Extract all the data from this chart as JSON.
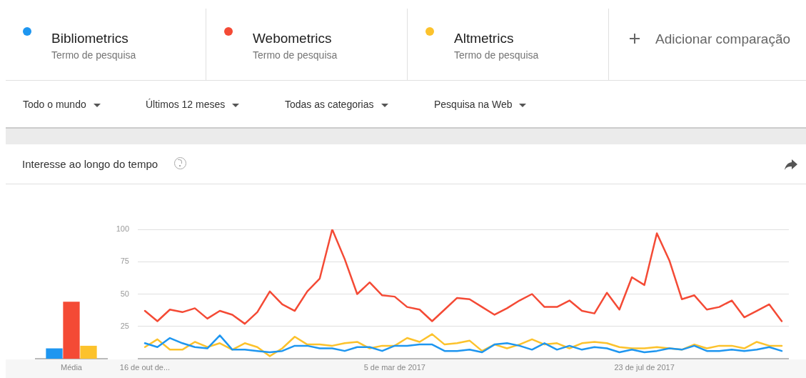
{
  "chart_data": [
    {
      "type": "line",
      "legend": "top",
      "grid": "y",
      "marker": "none",
      "line_style": "solid",
      "annotations": [
        "Termo de pesquisa",
        "Termo de pesquisa",
        "Termo de pesquisa",
        "Adicionar comparação",
        "Todo o mundo",
        "Últimos 12 meses",
        "Todas as categorias",
        "Pesquisa na Web"
      ],
      "x": [
        "2016-10-16",
        "2016-10-23",
        "2016-10-30",
        "2016-11-06",
        "2016-11-13",
        "2016-11-20",
        "2016-11-27",
        "2016-12-04",
        "2016-12-11",
        "2016-12-18",
        "2016-12-25",
        "2017-01-01",
        "2017-01-08",
        "2017-01-15",
        "2017-01-22",
        "2017-01-29",
        "2017-02-05",
        "2017-02-12",
        "2017-02-19",
        "2017-02-26",
        "2017-03-05",
        "2017-03-12",
        "2017-03-19",
        "2017-03-26",
        "2017-04-02",
        "2017-04-09",
        "2017-04-16",
        "2017-04-23",
        "2017-04-30",
        "2017-05-07",
        "2017-05-14",
        "2017-05-21",
        "2017-05-28",
        "2017-06-04",
        "2017-06-11",
        "2017-06-18",
        "2017-06-25",
        "2017-07-02",
        "2017-07-09",
        "2017-07-16",
        "2017-07-23",
        "2017-07-30",
        "2017-08-06",
        "2017-08-13",
        "2017-08-20",
        "2017-08-27",
        "2017-09-03",
        "2017-09-10",
        "2017-09-17",
        "2017-09-24",
        "2017-10-01",
        "2017-10-08"
      ],
      "xlim": [
        "2016-10-12",
        "2017-10-12"
      ],
      "xticks": [
        {
          "value": "2016-10-16",
          "label": "16 de out de..."
        },
        {
          "value": "2017-03-05",
          "label": "5 de mar de 2017"
        },
        {
          "value": "2017-07-23",
          "label": "23 de jul de 2017"
        }
      ],
      "ylim": [
        0,
        100
      ],
      "yticks": [
        {
          "value": 0,
          "label": null
        },
        25,
        50,
        75,
        100
      ],
      "series": [
        {
          "name": "Bibliometrics",
          "color": "#1e96f0",
          "values": [
            12,
            9,
            16,
            12,
            9,
            8,
            18,
            7,
            7,
            6,
            5,
            6,
            10,
            10,
            8,
            8,
            6,
            9,
            9,
            6,
            10,
            10,
            11,
            11,
            6,
            6,
            7,
            5,
            11,
            12,
            10,
            7,
            12,
            7,
            10,
            7,
            9,
            8,
            5,
            7,
            5,
            6,
            8,
            7,
            10,
            6,
            6,
            7,
            6,
            7,
            9,
            6
          ]
        },
        {
          "name": "Webometrics",
          "color": "#f44a35",
          "values": [
            37,
            29,
            38,
            36,
            39,
            31,
            37,
            34,
            27,
            36,
            52,
            42,
            37,
            52,
            62,
            100,
            77,
            50,
            59,
            49,
            48,
            40,
            38,
            29,
            38,
            47,
            46,
            40,
            34,
            39,
            45,
            50,
            40,
            40,
            45,
            37,
            35,
            51,
            38,
            63,
            57,
            97,
            76,
            46,
            49,
            38,
            40,
            45,
            32,
            37,
            42,
            29
          ]
        },
        {
          "name": "Altmetrics",
          "color": "#fcc22c",
          "values": [
            9,
            15,
            7,
            7,
            13,
            9,
            12,
            7,
            12,
            9,
            2,
            8,
            17,
            11,
            11,
            10,
            12,
            13,
            8,
            10,
            10,
            16,
            13,
            19,
            11,
            12,
            14,
            6,
            11,
            8,
            11,
            15,
            11,
            12,
            8,
            12,
            13,
            12,
            9,
            8,
            8,
            9,
            8,
            7,
            11,
            8,
            10,
            10,
            8,
            13,
            10,
            10
          ]
        }
      ]
    },
    {
      "type": "bar",
      "title": "Interesse ao longo do tempo",
      "categories": [
        "Média"
      ],
      "ylim": [
        0,
        100
      ],
      "tick_labels": "x",
      "series": [
        {
          "color": "#1e96f0",
          "values": [
            8
          ]
        },
        {
          "color": "#f44a35",
          "values": [
            44
          ]
        },
        {
          "color": "#fcc22c",
          "values": [
            10
          ]
        }
      ]
    }
  ]
}
